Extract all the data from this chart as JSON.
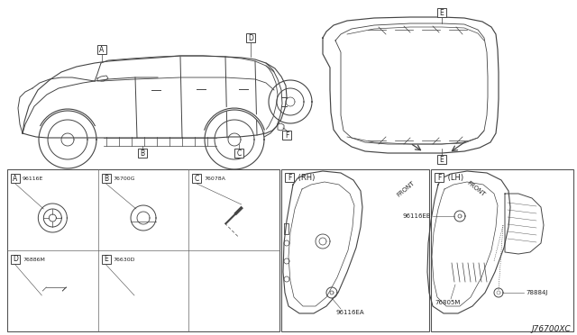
{
  "bg_color": "#ffffff",
  "fig_width": 6.4,
  "fig_height": 3.72,
  "dpi": 100,
  "part_code": "J76700XC",
  "line_color": "#444444",
  "text_color": "#222222",
  "light_line": "#888888",
  "part_labels": {
    "A_part": "96116E",
    "B_part": "76700G",
    "C_part": "76078A",
    "D_part": "76886M",
    "E_part": "76630D",
    "RH_part": "96116EA",
    "LH_part1": "96116EB",
    "LH_part2": "76805M",
    "LH_part3": "78884J"
  },
  "small_font": 5.0,
  "tag_font": 5.5,
  "note_font": 5.0
}
